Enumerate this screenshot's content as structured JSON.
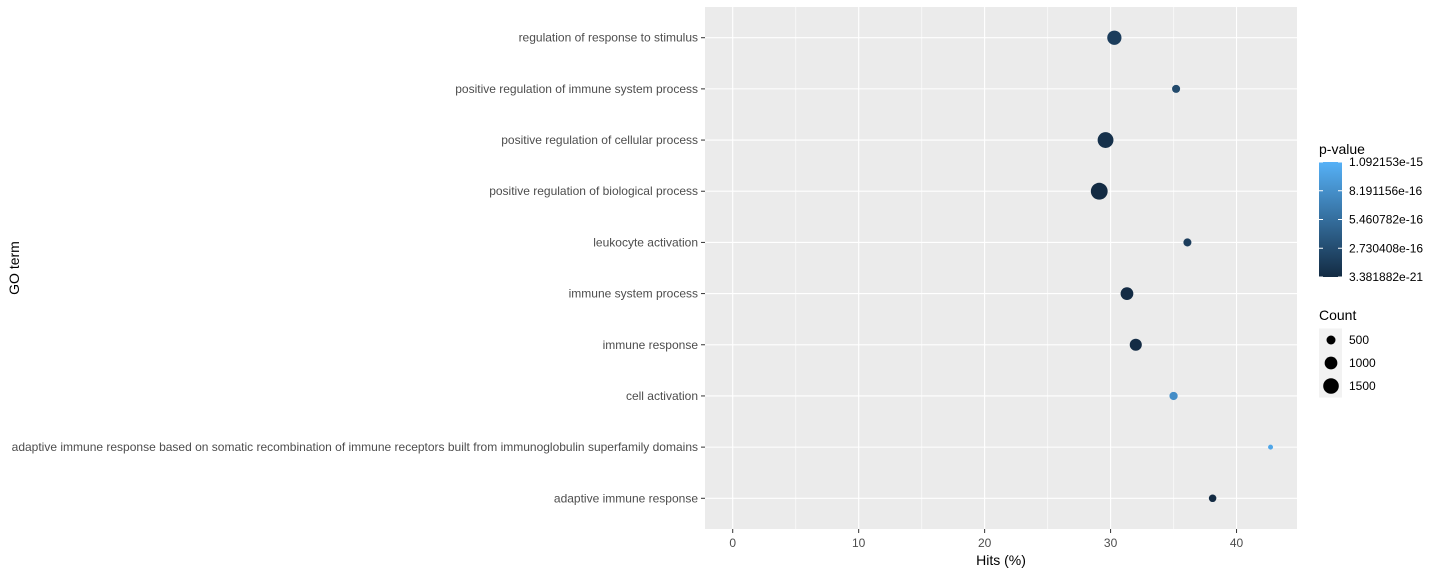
{
  "chart_data": {
    "type": "scatter",
    "xlabel": "Hits (%)",
    "ylabel": "GO term",
    "xlim": [
      -2.2,
      44.8
    ],
    "xticks": [
      "0",
      "10",
      "20",
      "30",
      "40"
    ],
    "grid": true,
    "legend_position": "right",
    "categories": [
      "adaptive immune response",
      "adaptive immune response based on somatic recombination of immune receptors built from immunoglobulin superfamily domains",
      "cell activation",
      "immune response",
      "immune system process",
      "leukocyte activation",
      "positive regulation of biological process",
      "positive regulation of cellular process",
      "positive regulation of immune system process",
      "regulation of response to stimulus"
    ],
    "points": [
      {
        "term": "regulation of response to stimulus",
        "hits": 30.3,
        "count": 1250,
        "p_value": 1.5e-16
      },
      {
        "term": "positive regulation of immune system process",
        "hits": 35.2,
        "count": 400,
        "p_value": 2.5e-16
      },
      {
        "term": "positive regulation of cellular process",
        "hits": 29.6,
        "count": 1550,
        "p_value": 5e-17
      },
      {
        "term": "positive regulation of biological process",
        "hits": 29.1,
        "count": 1750,
        "p_value": 1e-18
      },
      {
        "term": "leukocyte activation",
        "hits": 36.1,
        "count": 400,
        "p_value": 1.5e-16
      },
      {
        "term": "immune system process",
        "hits": 31.3,
        "count": 1000,
        "p_value": 1e-17
      },
      {
        "term": "immune response",
        "hits": 32.0,
        "count": 900,
        "p_value": 1e-17
      },
      {
        "term": "cell activation",
        "hits": 35.0,
        "count": 420,
        "p_value": 8e-16
      },
      {
        "term": "adaptive immune response based on somatic recombination of immune receptors built from immunoglobulin superfamily domains",
        "hits": 42.7,
        "count": 150,
        "p_value": 1e-15
      },
      {
        "term": "adaptive immune response",
        "hits": 38.1,
        "count": 350,
        "p_value": 3.381882e-21
      }
    ],
    "color_legend": {
      "title": "p-value",
      "labels": [
        "1.092153e-15",
        "8.191156e-16",
        "5.460782e-16",
        "2.730408e-16",
        "3.381882e-21"
      ],
      "low_color": "#132B43",
      "high_color": "#56B1F7"
    },
    "size_legend": {
      "title": "Count",
      "labels": [
        "500",
        "1000",
        "1500"
      ],
      "values": [
        500,
        1000,
        1500
      ]
    }
  },
  "colors": {
    "panel": "#ebebeb",
    "grid": "#ffffff"
  }
}
